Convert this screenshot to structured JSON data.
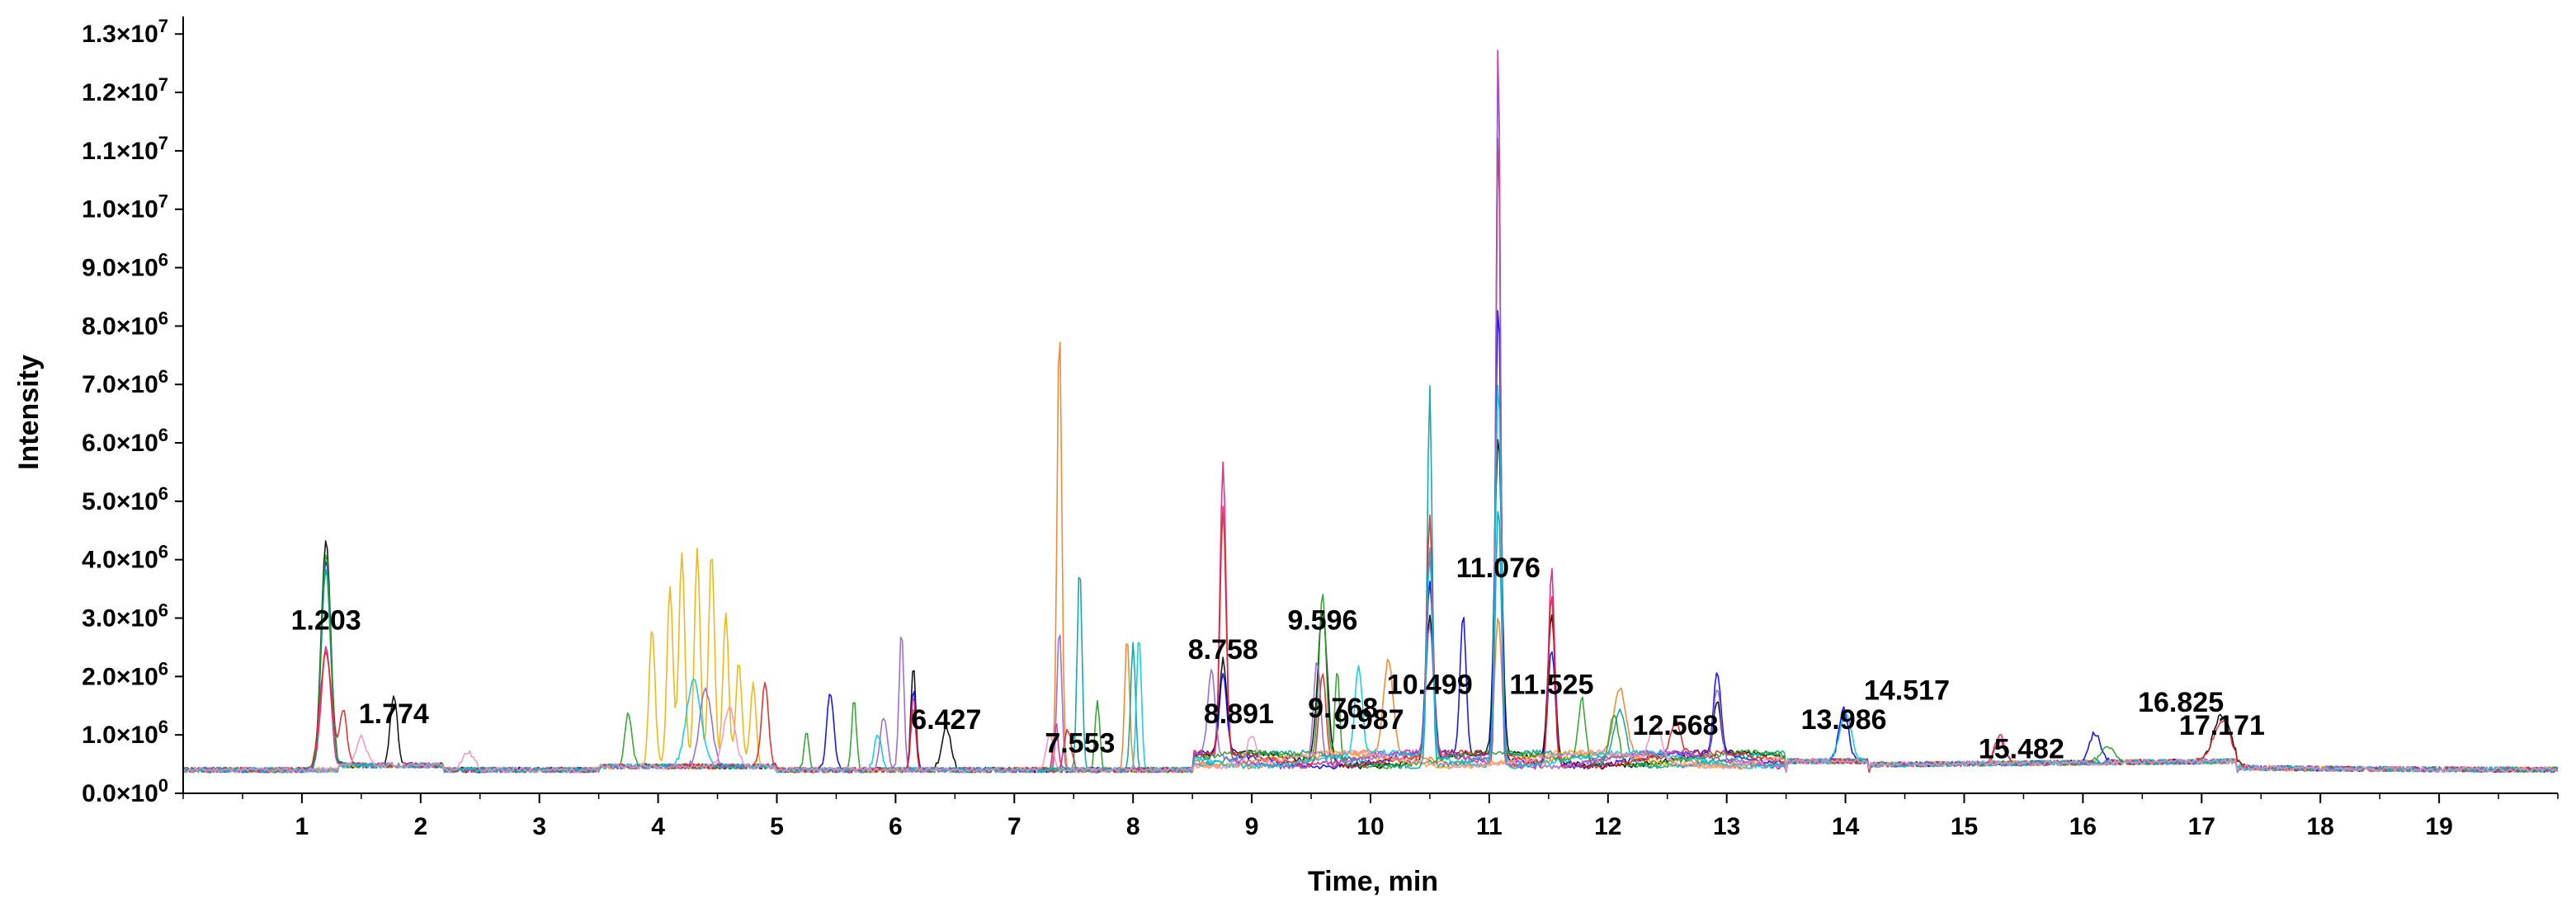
{
  "chart_data": {
    "type": "line",
    "title": "",
    "xlabel": "Time, min",
    "ylabel": "Intensity",
    "xlim": [
      0,
      20
    ],
    "ylim": [
      0,
      13300000
    ],
    "x_ticks": [
      1,
      2,
      3,
      4,
      5,
      6,
      7,
      8,
      9,
      10,
      11,
      12,
      13,
      14,
      15,
      16,
      17,
      18,
      19
    ],
    "x_tick_labels": [
      "1",
      "2",
      "3",
      "4",
      "5",
      "6",
      "7",
      "8",
      "9",
      "10",
      "11",
      "12",
      "13",
      "14",
      "15",
      "16",
      "17",
      "18",
      "19"
    ],
    "y_ticks": [
      0,
      1000000,
      2000000,
      3000000,
      4000000,
      5000000,
      6000000,
      7000000,
      8000000,
      9000000,
      10000000,
      11000000,
      12000000,
      13000000
    ],
    "y_tick_labels": [
      {
        "mant": "0.0",
        "exp": "0"
      },
      {
        "mant": "1.0",
        "exp": "6"
      },
      {
        "mant": "2.0",
        "exp": "6"
      },
      {
        "mant": "3.0",
        "exp": "6"
      },
      {
        "mant": "4.0",
        "exp": "6"
      },
      {
        "mant": "5.0",
        "exp": "6"
      },
      {
        "mant": "6.0",
        "exp": "6"
      },
      {
        "mant": "7.0",
        "exp": "6"
      },
      {
        "mant": "8.0",
        "exp": "6"
      },
      {
        "mant": "9.0",
        "exp": "6"
      },
      {
        "mant": "1.0",
        "exp": "7"
      },
      {
        "mant": "1.1",
        "exp": "7"
      },
      {
        "mant": "1.2",
        "exp": "7"
      },
      {
        "mant": "1.3",
        "exp": "7"
      }
    ],
    "baseline": 400000,
    "peak_labels": [
      {
        "text": "1.203",
        "x": 1.203,
        "y": 2800000
      },
      {
        "text": "1.774",
        "x": 1.774,
        "y": 1200000
      },
      {
        "text": "6.427",
        "x": 6.427,
        "y": 1100000
      },
      {
        "text": "7.553",
        "x": 7.553,
        "y": 700000
      },
      {
        "text": "8.891",
        "x": 8.891,
        "y": 1200000
      },
      {
        "text": "8.758",
        "x": 8.758,
        "y": 2300000
      },
      {
        "text": "9.596",
        "x": 9.596,
        "y": 2800000
      },
      {
        "text": "9.768",
        "x": 9.768,
        "y": 1300000
      },
      {
        "text": "9.987",
        "x": 9.987,
        "y": 1100000
      },
      {
        "text": "10.499",
        "x": 10.499,
        "y": 1700000
      },
      {
        "text": "11.076",
        "x": 11.076,
        "y": 3700000
      },
      {
        "text": "11.525",
        "x": 11.525,
        "y": 1700000
      },
      {
        "text": "12.568",
        "x": 12.568,
        "y": 1000000
      },
      {
        "text": "13.986",
        "x": 13.986,
        "y": 1100000
      },
      {
        "text": "14.517",
        "x": 14.517,
        "y": 1600000
      },
      {
        "text": "15.482",
        "x": 15.482,
        "y": 600000
      },
      {
        "text": "16.825",
        "x": 16.825,
        "y": 1400000
      },
      {
        "text": "17.171",
        "x": 17.171,
        "y": 1000000
      }
    ],
    "series": [
      {
        "name": "trace-black",
        "color": "#000000",
        "peaks": [
          [
            1.203,
            4300000,
            0.04
          ],
          [
            1.774,
            1600000,
            0.03
          ],
          [
            6.15,
            2200000,
            0.02
          ],
          [
            6.427,
            1100000,
            0.04
          ],
          [
            8.758,
            2000000,
            0.03
          ],
          [
            9.596,
            3000000,
            0.04
          ],
          [
            10.499,
            2900000,
            0.03
          ],
          [
            11.076,
            5800000,
            0.03
          ],
          [
            11.525,
            2900000,
            0.03
          ],
          [
            12.92,
            1300000,
            0.03
          ],
          [
            17.171,
            1200000,
            0.07
          ]
        ]
      },
      {
        "name": "trace-blue",
        "color": "#0000ee",
        "peaks": [
          [
            1.203,
            4000000,
            0.04
          ],
          [
            5.45,
            1700000,
            0.03
          ],
          [
            6.15,
            1800000,
            0.02
          ],
          [
            8.758,
            1800000,
            0.03
          ],
          [
            10.499,
            3300000,
            0.03
          ],
          [
            10.78,
            2800000,
            0.025
          ],
          [
            11.076,
            8200000,
            0.025
          ],
          [
            11.525,
            2400000,
            0.03
          ],
          [
            12.92,
            1800000,
            0.03
          ],
          [
            13.986,
            1300000,
            0.04
          ],
          [
            16.1,
            900000,
            0.05
          ]
        ]
      },
      {
        "name": "trace-magenta",
        "color": "#e01890",
        "peaks": [
          [
            1.203,
            2500000,
            0.04
          ],
          [
            6.15,
            1700000,
            0.02
          ],
          [
            7.35,
            1200000,
            0.02
          ],
          [
            8.758,
            5500000,
            0.025
          ],
          [
            10.499,
            3800000,
            0.025
          ],
          [
            11.076,
            13000000,
            0.018
          ],
          [
            11.525,
            3800000,
            0.025
          ],
          [
            15.3,
            900000,
            0.04
          ]
        ]
      },
      {
        "name": "trace-orange",
        "color": "#f08020",
        "peaks": [
          [
            7.38,
            8000000,
            0.02
          ],
          [
            7.95,
            2700000,
            0.02
          ],
          [
            10.15,
            2000000,
            0.04
          ],
          [
            11.076,
            3000000,
            0.03
          ],
          [
            12.1,
            1500000,
            0.05
          ]
        ]
      },
      {
        "name": "trace-gold",
        "color": "#f0b000",
        "peaks": [
          [
            3.95,
            2800000,
            0.025
          ],
          [
            4.1,
            3500000,
            0.025
          ],
          [
            4.2,
            4100000,
            0.025
          ],
          [
            4.33,
            4100000,
            0.025
          ],
          [
            4.45,
            4100000,
            0.025
          ],
          [
            4.57,
            3000000,
            0.025
          ],
          [
            4.68,
            2200000,
            0.025
          ],
          [
            4.8,
            1800000,
            0.025
          ]
        ]
      },
      {
        "name": "trace-teal",
        "color": "#00a0a0",
        "peaks": [
          [
            1.203,
            3800000,
            0.04
          ],
          [
            7.55,
            3900000,
            0.02
          ],
          [
            8.0,
            2600000,
            0.02
          ],
          [
            10.499,
            6900000,
            0.02
          ],
          [
            11.076,
            4700000,
            0.025
          ],
          [
            12.1,
            1300000,
            0.05
          ]
        ]
      },
      {
        "name": "trace-green",
        "color": "#20a020",
        "peaks": [
          [
            1.203,
            4100000,
            0.04
          ],
          [
            3.75,
            1300000,
            0.03
          ],
          [
            5.25,
            1100000,
            0.02
          ],
          [
            5.65,
            1600000,
            0.02
          ],
          [
            7.7,
            1600000,
            0.02
          ],
          [
            9.596,
            3300000,
            0.03
          ],
          [
            9.72,
            2000000,
            0.02
          ],
          [
            11.78,
            1500000,
            0.03
          ],
          [
            12.05,
            1300000,
            0.04
          ],
          [
            16.2,
            700000,
            0.05
          ]
        ]
      },
      {
        "name": "trace-red",
        "color": "#e02020",
        "peaks": [
          [
            1.203,
            2400000,
            0.05
          ],
          [
            1.35,
            1300000,
            0.03
          ],
          [
            4.9,
            1800000,
            0.03
          ],
          [
            6.15,
            1500000,
            0.02
          ],
          [
            7.45,
            1100000,
            0.03
          ],
          [
            8.758,
            4600000,
            0.025
          ],
          [
            9.596,
            2000000,
            0.03
          ],
          [
            10.499,
            4500000,
            0.025
          ],
          [
            11.076,
            11200000,
            0.02
          ],
          [
            11.525,
            3300000,
            0.025
          ],
          [
            12.568,
            1000000,
            0.04
          ],
          [
            15.3,
            800000,
            0.04
          ],
          [
            17.171,
            1100000,
            0.07
          ]
        ]
      },
      {
        "name": "trace-violet",
        "color": "#9060d0",
        "peaks": [
          [
            4.4,
            1700000,
            0.05
          ],
          [
            5.9,
            1300000,
            0.03
          ],
          [
            6.05,
            2800000,
            0.02
          ],
          [
            7.38,
            2800000,
            0.02
          ],
          [
            8.66,
            1900000,
            0.03
          ],
          [
            9.55,
            2200000,
            0.03
          ],
          [
            10.499,
            2600000,
            0.03
          ],
          [
            11.076,
            12700000,
            0.018
          ],
          [
            12.92,
            1600000,
            0.03
          ]
        ]
      },
      {
        "name": "trace-cyan",
        "color": "#00c8e8",
        "peaks": [
          [
            4.3,
            1900000,
            0.06
          ],
          [
            5.85,
            1000000,
            0.03
          ],
          [
            8.05,
            2700000,
            0.02
          ],
          [
            9.9,
            1900000,
            0.03
          ],
          [
            10.499,
            4000000,
            0.025
          ],
          [
            11.076,
            7000000,
            0.025
          ],
          [
            14.0,
            1200000,
            0.05
          ]
        ]
      },
      {
        "name": "trace-pink",
        "color": "#f090c0",
        "peaks": [
          [
            1.5,
            900000,
            0.04
          ],
          [
            2.4,
            700000,
            0.05
          ],
          [
            4.6,
            1400000,
            0.05
          ],
          [
            7.3,
            1000000,
            0.03
          ],
          [
            9.0,
            900000,
            0.04
          ],
          [
            12.4,
            1000000,
            0.05
          ]
        ]
      }
    ]
  }
}
